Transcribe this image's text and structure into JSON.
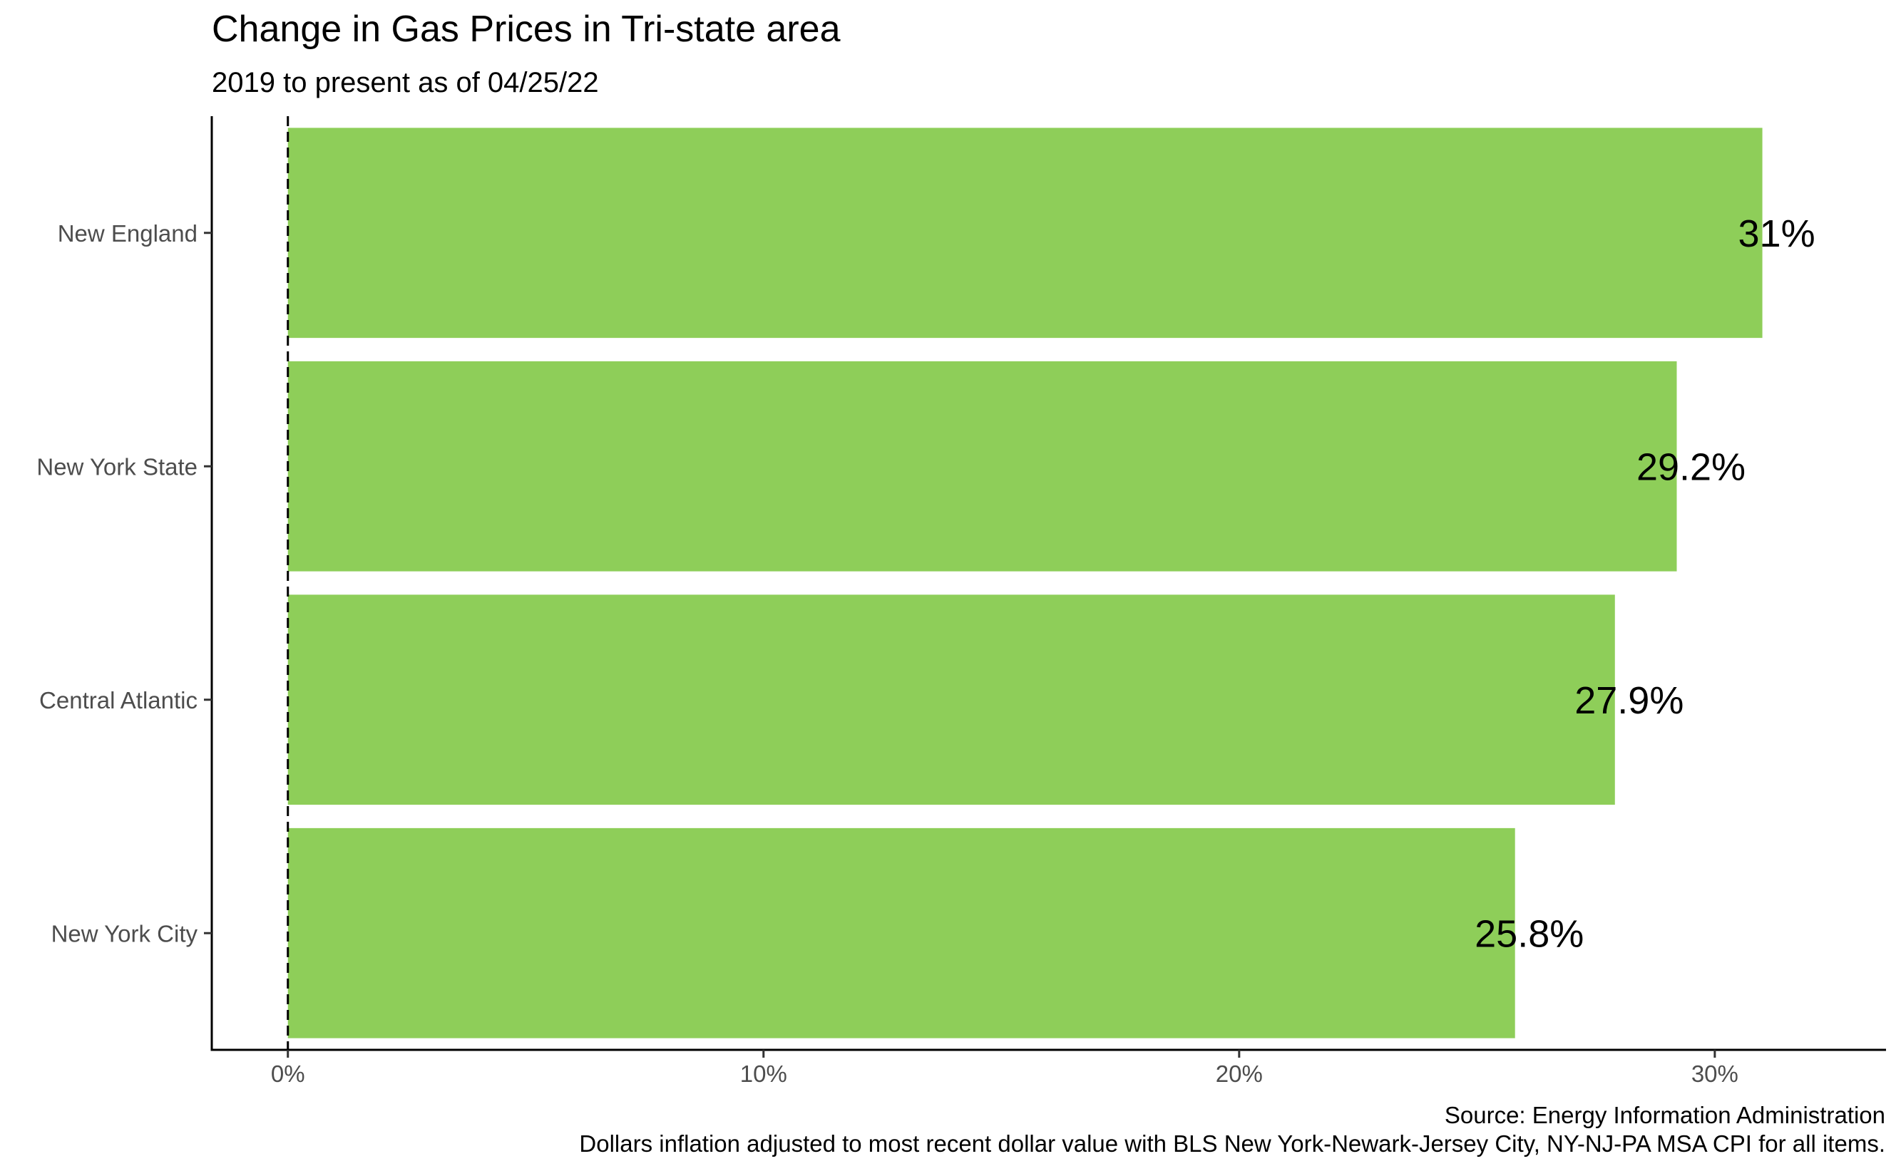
{
  "chart_data": {
    "type": "bar",
    "orientation": "horizontal",
    "title": "Change in Gas Prices in Tri-state area",
    "subtitle": "2019 to present as of 04/25/22",
    "xlabel": "",
    "ylabel": "",
    "categories": [
      "New England",
      "New York State",
      "Central Atlantic",
      "New York City"
    ],
    "values": [
      31.0,
      29.2,
      27.9,
      25.8
    ],
    "data_labels": [
      "31%",
      "29.2%",
      "27.9%",
      "25.8%"
    ],
    "unit": "%",
    "xlim": [
      -1.6,
      33.6
    ],
    "x_ticks": [
      0,
      10,
      20,
      30
    ],
    "x_tick_labels": [
      "0%",
      "10%",
      "20%",
      "30%"
    ],
    "reference_line": {
      "x": 0,
      "style": "dashed"
    },
    "bar_color": "#8ECE59",
    "grid": false,
    "legend": "none",
    "caption_lines": [
      "Source: Energy Information Administration",
      "Dollars inflation adjusted to most recent dollar value with BLS New York-Newark-Jersey City, NY-NJ-PA MSA CPI for all items."
    ]
  }
}
